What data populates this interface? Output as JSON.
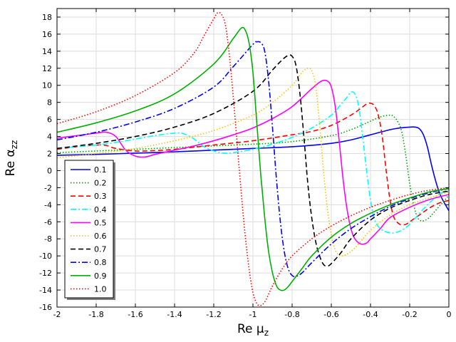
{
  "chart_data": {
    "type": "line",
    "title": "",
    "xlabel_main": "Re μ",
    "xlabel_sub": "z",
    "ylabel_main": "Re α",
    "ylabel_sub": "zz",
    "xlim": [
      -2,
      0
    ],
    "ylim": [
      -16,
      19
    ],
    "xticks": [
      -2,
      -1.8,
      -1.6,
      -1.4,
      -1.2,
      -1,
      -0.8,
      -0.6,
      -0.4,
      -0.2,
      0
    ],
    "xtick_labels": [
      "-2",
      "-1.8",
      "-1.6",
      "-1.4",
      "-1.2",
      "-1",
      "-0.8",
      "-0.6",
      "-0.4",
      "-0.2",
      "0"
    ],
    "yticks": [
      -16,
      -14,
      -12,
      -10,
      -8,
      -6,
      -4,
      -2,
      0,
      2,
      4,
      6,
      8,
      10,
      12,
      14,
      16,
      18
    ],
    "ytick_labels": [
      "-16",
      "-14",
      "-12",
      "-10",
      "-8",
      "-6",
      "-4",
      "-2",
      "0",
      "2",
      "4",
      "6",
      "8",
      "10",
      "12",
      "14",
      "16",
      "18"
    ],
    "grid": true,
    "legend_position": "bottom-left",
    "series": [
      {
        "name": "0.1",
        "color": "#0000ff",
        "dash": "solid",
        "x": [
          -2,
          -1.8,
          -1.6,
          -1.4,
          -1.2,
          -1.0,
          -0.8,
          -0.6,
          -0.5,
          -0.4,
          -0.3,
          -0.25,
          -0.2,
          -0.17,
          -0.15,
          -0.13,
          -0.11,
          -0.09,
          -0.07,
          -0.05,
          -0.03,
          0
        ],
        "y": [
          1.8,
          1.9,
          2.05,
          2.2,
          2.4,
          2.6,
          2.8,
          3.2,
          3.6,
          4.2,
          4.8,
          5.0,
          5.1,
          5.1,
          4.9,
          4.2,
          2.8,
          0.8,
          -1.0,
          -2.5,
          -3.5,
          -4.7
        ]
      },
      {
        "name": "0.2",
        "color": "#00a000",
        "dash": "dotted",
        "x": [
          -2,
          -1.8,
          -1.6,
          -1.4,
          -1.2,
          -1.0,
          -0.8,
          -0.6,
          -0.5,
          -0.4,
          -0.35,
          -0.3,
          -0.28,
          -0.26,
          -0.24,
          -0.22,
          -0.2,
          -0.18,
          -0.16,
          -0.14,
          -0.12,
          -0.1,
          -0.08,
          -0.05,
          -0.03,
          0
        ],
        "y": [
          2.1,
          2.3,
          2.5,
          2.7,
          2.9,
          3.1,
          3.4,
          4.1,
          4.8,
          5.8,
          6.3,
          6.5,
          6.3,
          5.7,
          4.5,
          1.8,
          -1.5,
          -4.0,
          -5.5,
          -5.9,
          -5.8,
          -5.5,
          -5.0,
          -4.2,
          -3.7,
          -2.9
        ]
      },
      {
        "name": "0.3",
        "color": "#ff0000",
        "dash": "dashed",
        "x": [
          -2,
          -1.9,
          -1.8,
          -1.75,
          -1.7,
          -1.6,
          -1.5,
          -1.4,
          -1.2,
          -1.0,
          -0.8,
          -0.7,
          -0.6,
          -0.5,
          -0.45,
          -0.42,
          -0.4,
          -0.38,
          -0.36,
          -0.34,
          -0.32,
          -0.3,
          -0.28,
          -0.25,
          -0.22,
          -0.2,
          -0.15,
          -0.1,
          -0.05,
          0
        ],
        "y": [
          2.5,
          2.8,
          3.0,
          2.95,
          2.6,
          2.3,
          2.35,
          2.5,
          3.0,
          3.5,
          4.2,
          4.6,
          5.3,
          6.5,
          7.3,
          7.8,
          7.9,
          7.6,
          6.5,
          4.0,
          0.0,
          -3.5,
          -5.5,
          -6.3,
          -6.3,
          -6.0,
          -5.2,
          -4.4,
          -3.8,
          -3.5
        ]
      },
      {
        "name": "0.4",
        "color": "#00ffff",
        "dash": "dashdot",
        "x": [
          -2,
          -1.9,
          -1.8,
          -1.7,
          -1.6,
          -1.5,
          -1.4,
          -1.35,
          -1.3,
          -1.25,
          -1.2,
          -1.15,
          -1.1,
          -1.0,
          -0.9,
          -0.8,
          -0.7,
          -0.6,
          -0.55,
          -0.52,
          -0.5,
          -0.48,
          -0.46,
          -0.44,
          -0.42,
          -0.4,
          -0.38,
          -0.35,
          -0.3,
          -0.25,
          -0.2,
          -0.15,
          -0.1,
          -0.05,
          0
        ],
        "y": [
          2.6,
          2.8,
          3.0,
          3.3,
          3.7,
          4.1,
          4.4,
          4.3,
          3.7,
          2.8,
          2.3,
          2.05,
          2.1,
          2.5,
          3.1,
          3.9,
          5.0,
          6.5,
          7.8,
          8.6,
          9.2,
          9.0,
          7.5,
          4.0,
          0.0,
          -3.5,
          -5.7,
          -6.8,
          -7.3,
          -7.1,
          -6.3,
          -5.0,
          -3.8,
          -2.8,
          -2.2
        ]
      },
      {
        "name": "0.5",
        "color": "#ff00ff",
        "dash": "solid",
        "x": [
          -2,
          -1.9,
          -1.8,
          -1.75,
          -1.7,
          -1.65,
          -1.6,
          -1.55,
          -1.5,
          -1.4,
          -1.3,
          -1.2,
          -1.1,
          -1.0,
          -0.9,
          -0.8,
          -0.7,
          -0.65,
          -0.62,
          -0.6,
          -0.58,
          -0.56,
          -0.54,
          -0.52,
          -0.5,
          -0.48,
          -0.45,
          -0.42,
          -0.4,
          -0.35,
          -0.3,
          -0.2,
          -0.1,
          0
        ],
        "y": [
          3.8,
          4.1,
          4.4,
          4.5,
          4.0,
          2.4,
          1.7,
          1.6,
          1.9,
          2.4,
          2.9,
          3.5,
          4.2,
          5.0,
          6.1,
          7.5,
          9.6,
          10.5,
          10.5,
          9.8,
          7.5,
          3.5,
          -1.0,
          -4.5,
          -6.8,
          -8.0,
          -8.6,
          -8.5,
          -8.0,
          -6.8,
          -5.5,
          -4.3,
          -3.4,
          -2.8
        ]
      },
      {
        "name": "0.6",
        "color": "#ffc000",
        "dash": "dotted",
        "x": [
          -2,
          -1.8,
          -1.6,
          -1.4,
          -1.2,
          -1.0,
          -0.9,
          -0.8,
          -0.75,
          -0.72,
          -0.7,
          -0.68,
          -0.66,
          -0.64,
          -0.62,
          -0.6,
          -0.58,
          -0.55,
          -0.5,
          -0.45,
          -0.4,
          -0.3,
          -0.2,
          -0.1,
          0
        ],
        "y": [
          1.5,
          2.0,
          2.6,
          3.5,
          4.7,
          6.5,
          8.0,
          10.0,
          11.5,
          12.0,
          11.7,
          10.0,
          5.5,
          0.0,
          -4.5,
          -7.5,
          -9.3,
          -10.0,
          -9.5,
          -8.3,
          -7.0,
          -5.2,
          -4.0,
          -3.2,
          -2.5
        ]
      },
      {
        "name": "0.7",
        "color": "#000000",
        "dash": "dashed",
        "x": [
          -2,
          -1.8,
          -1.6,
          -1.4,
          -1.2,
          -1.0,
          -0.9,
          -0.85,
          -0.82,
          -0.8,
          -0.78,
          -0.76,
          -0.74,
          -0.72,
          -0.7,
          -0.68,
          -0.66,
          -0.64,
          -0.62,
          -0.6,
          -0.55,
          -0.5,
          -0.4,
          -0.3,
          -0.2,
          -0.1,
          0
        ],
        "y": [
          2.6,
          3.2,
          4.0,
          5.1,
          6.7,
          9.3,
          11.8,
          13.0,
          13.5,
          13.4,
          12.3,
          9.0,
          4.0,
          -1.5,
          -5.5,
          -8.3,
          -10.0,
          -11.0,
          -11.2,
          -10.9,
          -9.6,
          -8.0,
          -5.8,
          -4.4,
          -3.5,
          -2.8,
          -2.4
        ]
      },
      {
        "name": "0.8",
        "color": "#0000ff",
        "dash": "dashdot",
        "x": [
          -2,
          -1.8,
          -1.6,
          -1.4,
          -1.2,
          -1.1,
          -1.0,
          -0.98,
          -0.96,
          -0.94,
          -0.92,
          -0.9,
          -0.88,
          -0.86,
          -0.84,
          -0.82,
          -0.8,
          -0.78,
          -0.75,
          -0.7,
          -0.6,
          -0.5,
          -0.4,
          -0.3,
          -0.2,
          -0.1,
          0
        ],
        "y": [
          3.6,
          4.5,
          5.7,
          7.3,
          9.8,
          12.2,
          14.8,
          15.1,
          15.0,
          14.0,
          10.5,
          5.0,
          -1.0,
          -6.0,
          -9.5,
          -11.5,
          -12.3,
          -12.4,
          -12.0,
          -10.8,
          -8.6,
          -6.8,
          -5.4,
          -4.2,
          -3.3,
          -2.6,
          -2.1
        ]
      },
      {
        "name": "0.9",
        "color": "#00b000",
        "dash": "solid",
        "x": [
          -2,
          -1.8,
          -1.6,
          -1.4,
          -1.2,
          -1.1,
          -1.06,
          -1.04,
          -1.02,
          -1.0,
          -0.98,
          -0.96,
          -0.94,
          -0.92,
          -0.9,
          -0.88,
          -0.86,
          -0.84,
          -0.82,
          -0.8,
          -0.75,
          -0.7,
          -0.6,
          -0.5,
          -0.4,
          -0.3,
          -0.2,
          -0.1,
          0
        ],
        "y": [
          4.5,
          5.6,
          7.0,
          9.0,
          12.5,
          15.5,
          16.7,
          16.5,
          15.0,
          11.5,
          5.5,
          -0.5,
          -5.5,
          -9.5,
          -12.0,
          -13.5,
          -14.0,
          -14.0,
          -13.6,
          -13.0,
          -11.5,
          -10.0,
          -7.8,
          -6.2,
          -5.0,
          -4.0,
          -3.2,
          -2.5,
          -2.1
        ]
      },
      {
        "name": "1.0",
        "color": "#ff0000",
        "dash": "dotted",
        "x": [
          -2,
          -1.8,
          -1.6,
          -1.4,
          -1.3,
          -1.25,
          -1.2,
          -1.18,
          -1.16,
          -1.14,
          -1.12,
          -1.1,
          -1.08,
          -1.06,
          -1.04,
          -1.02,
          -1.0,
          -0.98,
          -0.96,
          -0.94,
          -0.92,
          -0.9,
          -0.85,
          -0.8,
          -0.7,
          -0.6,
          -0.5,
          -0.4,
          -0.3,
          -0.2,
          -0.1,
          0
        ],
        "y": [
          5.5,
          6.9,
          8.8,
          11.5,
          13.8,
          15.8,
          17.8,
          18.5,
          18.3,
          17.0,
          13.5,
          8.5,
          3.0,
          -2.5,
          -7.5,
          -11.5,
          -14.3,
          -15.6,
          -15.8,
          -15.4,
          -14.5,
          -13.5,
          -11.5,
          -10.0,
          -8.0,
          -6.5,
          -5.3,
          -4.3,
          -3.5,
          -2.8,
          -2.3,
          -2.0
        ]
      }
    ]
  }
}
